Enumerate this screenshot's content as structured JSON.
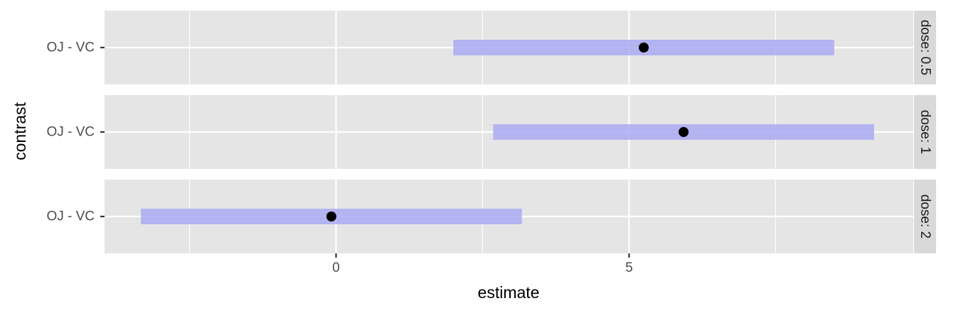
{
  "chart_data": {
    "type": "interval",
    "xlabel": "estimate",
    "ylabel": "contrast",
    "xlim": [
      -3.95,
      9.85
    ],
    "x_ticks": [
      0,
      5
    ],
    "x_tick_labels": [
      "0",
      "5"
    ],
    "x_minor_gridlines": [
      -2.5,
      2.5,
      7.5
    ],
    "grid": true,
    "colors": {
      "panel_bg": "#e5e5e5",
      "strip_bg": "#d9d9d9",
      "grid": "#ffffff",
      "interval": "#aaaaf3",
      "point": "#000000",
      "text": "#4d4d4d"
    },
    "panels": [
      {
        "facet_label": "dose: 0.5",
        "contrast": "OJ - VC",
        "estimate": 5.25,
        "conf_low": 2.0,
        "conf_high": 8.5
      },
      {
        "facet_label": "dose: 1",
        "contrast": "OJ - VC",
        "estimate": 5.93,
        "conf_low": 2.68,
        "conf_high": 9.18
      },
      {
        "facet_label": "dose: 2",
        "contrast": "OJ - VC",
        "estimate": -0.08,
        "conf_low": -3.33,
        "conf_high": 3.17
      }
    ]
  }
}
